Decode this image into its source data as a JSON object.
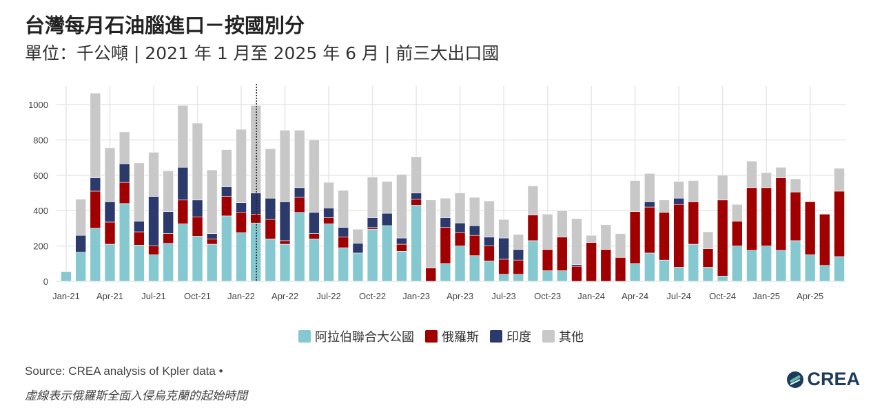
{
  "header": {
    "title": "台灣每月石油腦進口－按國別分",
    "subtitle": "單位：千公噸 | 2021 年 1 月至 2025 年 6 月 | 前三大出口國"
  },
  "chart_data": {
    "type": "bar",
    "stacked": true,
    "ylim": [
      0,
      1100
    ],
    "yticks": [
      0,
      200,
      400,
      600,
      800,
      1000
    ],
    "grid": true,
    "legend_position": "bottom",
    "xtick_labels": [
      "Jan-21",
      "Apr-21",
      "Jul-21",
      "Oct-21",
      "Jan-22",
      "Apr-22",
      "Jul-22",
      "Oct-22",
      "Jan-23",
      "Apr-23",
      "Jul-23",
      "Oct-23",
      "Jan-24",
      "Apr-24",
      "Jul-24",
      "Oct-24",
      "Jan-25",
      "Apr-25"
    ],
    "annotation": {
      "type": "dotted-vline",
      "category": "Feb-22"
    },
    "categories": [
      "Jan-21",
      "Feb-21",
      "Mar-21",
      "Apr-21",
      "May-21",
      "Jun-21",
      "Jul-21",
      "Aug-21",
      "Sep-21",
      "Oct-21",
      "Nov-21",
      "Dec-21",
      "Jan-22",
      "Feb-22",
      "Mar-22",
      "Apr-22",
      "May-22",
      "Jun-22",
      "Jul-22",
      "Aug-22",
      "Sep-22",
      "Oct-22",
      "Nov-22",
      "Dec-22",
      "Jan-23",
      "Feb-23",
      "Mar-23",
      "Apr-23",
      "May-23",
      "Jun-23",
      "Jul-23",
      "Aug-23",
      "Sep-23",
      "Oct-23",
      "Nov-23",
      "Dec-23",
      "Jan-24",
      "Feb-24",
      "Mar-24",
      "Apr-24",
      "May-24",
      "Jun-24",
      "Jul-24",
      "Aug-24",
      "Sep-24",
      "Oct-24",
      "Nov-24",
      "Dec-24",
      "Jan-25",
      "Feb-25",
      "Mar-25",
      "Apr-25",
      "May-25",
      "Jun-25"
    ],
    "series": [
      {
        "name": "阿拉伯聯合大公國",
        "color": "#86c8d0",
        "values": [
          55,
          165,
          300,
          210,
          440,
          205,
          150,
          215,
          325,
          255,
          210,
          370,
          275,
          330,
          240,
          210,
          390,
          240,
          325,
          190,
          160,
          295,
          315,
          170,
          430,
          0,
          100,
          200,
          145,
          115,
          40,
          40,
          230,
          60,
          60,
          0,
          0,
          0,
          0,
          100,
          160,
          120,
          80,
          210,
          80,
          30,
          200,
          175,
          200,
          175,
          230,
          150,
          90,
          140
        ]
      },
      {
        "name": "俄羅斯",
        "color": "#a00000",
        "values": [
          0,
          0,
          210,
          125,
          120,
          75,
          50,
          55,
          135,
          110,
          30,
          110,
          115,
          50,
          110,
          20,
          85,
          30,
          35,
          60,
          0,
          10,
          0,
          40,
          35,
          75,
          205,
          75,
          115,
          85,
          85,
          80,
          145,
          120,
          190,
          85,
          220,
          180,
          135,
          295,
          260,
          270,
          355,
          240,
          105,
          430,
          140,
          355,
          330,
          410,
          275,
          300,
          290,
          370
        ]
      },
      {
        "name": "印度",
        "color": "#2b3a6b",
        "values": [
          0,
          95,
          75,
          115,
          105,
          60,
          280,
          125,
          185,
          95,
          30,
          55,
          55,
          120,
          120,
          220,
          55,
          120,
          55,
          55,
          55,
          55,
          70,
          35,
          35,
          0,
          55,
          55,
          55,
          50,
          120,
          60,
          0,
          0,
          0,
          10,
          0,
          0,
          0,
          0,
          30,
          0,
          35,
          0,
          0,
          0,
          0,
          0,
          0,
          0,
          0,
          0,
          0,
          0
        ]
      },
      {
        "name": "其他",
        "color": "#c8c8c8",
        "values": [
          0,
          205,
          480,
          305,
          180,
          330,
          250,
          230,
          350,
          435,
          360,
          210,
          415,
          495,
          280,
          405,
          325,
          410,
          145,
          210,
          80,
          230,
          180,
          360,
          205,
          385,
          110,
          170,
          160,
          205,
          105,
          85,
          165,
          200,
          150,
          260,
          40,
          140,
          135,
          175,
          160,
          70,
          95,
          120,
          95,
          140,
          95,
          150,
          85,
          60,
          75,
          0,
          0,
          130
        ]
      }
    ]
  },
  "footer": {
    "source": "Source: CREA analysis of Kpler data •",
    "note": "虛線表示俄羅斯全面入侵烏克蘭的起始時間",
    "logo": "CREA"
  }
}
